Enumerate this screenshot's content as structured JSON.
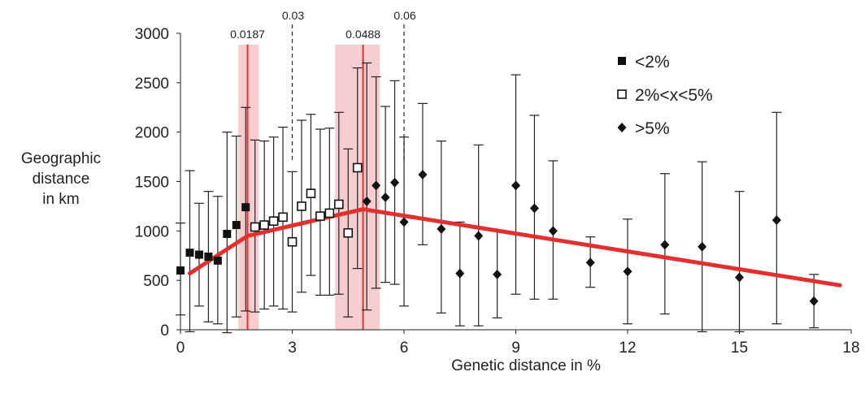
{
  "chart_data": {
    "type": "scatter",
    "xlabel": "Genetic distance in %",
    "ylabel_lines": [
      "Geographic",
      "distance",
      "in km"
    ],
    "xlim": [
      0,
      18
    ],
    "ylim": [
      0,
      3000
    ],
    "xticks": [
      0,
      3,
      6,
      9,
      12,
      15,
      18
    ],
    "yticks": [
      0,
      500,
      1000,
      1500,
      2000,
      2500,
      3000
    ],
    "grid": false,
    "legend_position": "top-right",
    "colors": {
      "fit_line": "#e03030",
      "band": "#f7c4c8",
      "points": "#111111"
    },
    "series": [
      {
        "name": "<2%",
        "marker": "filled-square",
        "points": [
          {
            "x": 0.0,
            "y": 600,
            "lo": 150,
            "hi": 1080
          },
          {
            "x": 0.25,
            "y": 780,
            "lo": -20,
            "hi": 1610
          },
          {
            "x": 0.5,
            "y": 760,
            "lo": 240,
            "hi": 1280
          },
          {
            "x": 0.75,
            "y": 740,
            "lo": 80,
            "hi": 1400
          },
          {
            "x": 1.0,
            "y": 700,
            "lo": 60,
            "hi": 1350
          },
          {
            "x": 1.25,
            "y": 970,
            "lo": -30,
            "hi": 2000
          },
          {
            "x": 1.5,
            "y": 1060,
            "lo": 130,
            "hi": 1960
          },
          {
            "x": 1.75,
            "y": 1240,
            "lo": 190,
            "hi": 2250
          }
        ]
      },
      {
        "name": "2%<x<5%",
        "marker": "open-square",
        "points": [
          {
            "x": 2.0,
            "y": 1040,
            "lo": 180,
            "hi": 1920
          },
          {
            "x": 2.25,
            "y": 1060,
            "lo": 210,
            "hi": 1910
          },
          {
            "x": 2.5,
            "y": 1100,
            "lo": 240,
            "hi": 1950
          },
          {
            "x": 2.75,
            "y": 1140,
            "lo": 210,
            "hi": 2050
          },
          {
            "x": 3.0,
            "y": 890,
            "lo": 180,
            "hi": 1600
          },
          {
            "x": 3.25,
            "y": 1250,
            "lo": 380,
            "hi": 2120
          },
          {
            "x": 3.5,
            "y": 1380,
            "lo": 550,
            "hi": 2180
          },
          {
            "x": 3.75,
            "y": 1150,
            "lo": 350,
            "hi": 2030
          },
          {
            "x": 4.0,
            "y": 1180,
            "lo": 350,
            "hi": 2040
          },
          {
            "x": 4.25,
            "y": 1270,
            "lo": 360,
            "hi": 2200
          },
          {
            "x": 4.5,
            "y": 980,
            "lo": 130,
            "hi": 1830
          },
          {
            "x": 4.75,
            "y": 1640,
            "lo": 620,
            "hi": 2650
          }
        ]
      },
      {
        "name": ">5%",
        "marker": "filled-diamond",
        "points": [
          {
            "x": 5.0,
            "y": 1300,
            "lo": 200,
            "hi": 2700
          },
          {
            "x": 5.25,
            "y": 1460,
            "lo": 420,
            "hi": 2560
          },
          {
            "x": 5.5,
            "y": 1340,
            "lo": 480,
            "hi": 2260
          },
          {
            "x": 5.75,
            "y": 1490,
            "lo": 460,
            "hi": 2520
          },
          {
            "x": 6.0,
            "y": 1090,
            "lo": 240,
            "hi": 1950
          },
          {
            "x": 6.5,
            "y": 1570,
            "lo": 860,
            "hi": 2290
          },
          {
            "x": 7.0,
            "y": 1020,
            "lo": 170,
            "hi": 1910
          },
          {
            "x": 7.5,
            "y": 570,
            "lo": 40,
            "hi": 1090
          },
          {
            "x": 8.0,
            "y": 950,
            "lo": 40,
            "hi": 1870
          },
          {
            "x": 8.5,
            "y": 560,
            "lo": 120,
            "hi": 1000
          },
          {
            "x": 9.0,
            "y": 1460,
            "lo": 360,
            "hi": 2580
          },
          {
            "x": 9.5,
            "y": 1230,
            "lo": 310,
            "hi": 2170
          },
          {
            "x": 10.0,
            "y": 1000,
            "lo": 310,
            "hi": 1710
          },
          {
            "x": 11.0,
            "y": 680,
            "lo": 430,
            "hi": 940
          },
          {
            "x": 12.0,
            "y": 590,
            "lo": 60,
            "hi": 1120
          },
          {
            "x": 13.0,
            "y": 860,
            "lo": 160,
            "hi": 1580
          },
          {
            "x": 14.0,
            "y": 840,
            "lo": -20,
            "hi": 1700
          },
          {
            "x": 15.0,
            "y": 530,
            "lo": -20,
            "hi": 1400
          },
          {
            "x": 16.0,
            "y": 1110,
            "lo": 60,
            "hi": 2200
          },
          {
            "x": 17.0,
            "y": 290,
            "lo": 20,
            "hi": 560
          }
        ]
      }
    ],
    "fit_line": {
      "x": [
        0.25,
        1.8,
        4.9,
        17.7
      ],
      "y": [
        570,
        950,
        1220,
        450
      ]
    },
    "bands": [
      {
        "label": "0.0187",
        "center": 1.8,
        "from": 1.55,
        "to": 2.1
      },
      {
        "label": "0.0488",
        "center": 4.9,
        "from": 4.15,
        "to": 5.35
      }
    ],
    "dashed_markers": [
      {
        "label": "0.03",
        "x": 3.0,
        "y_top": 3000
      },
      {
        "label": "0.06",
        "x": 6.0,
        "y_top": 3000
      }
    ]
  }
}
